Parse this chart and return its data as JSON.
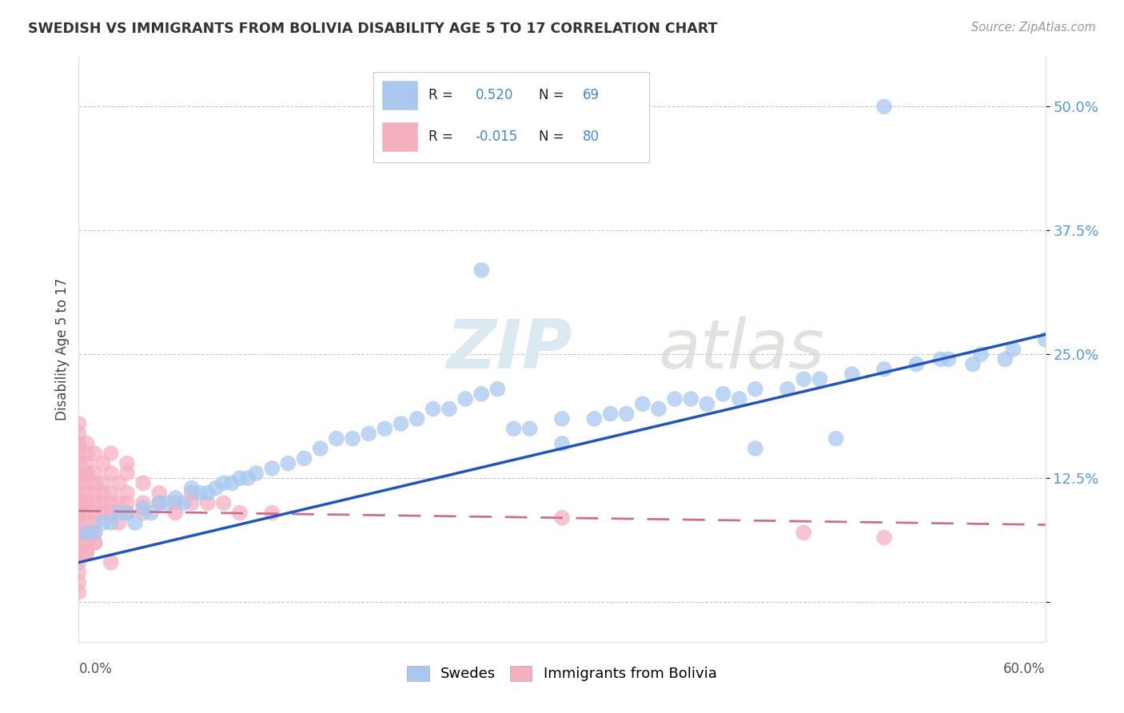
{
  "title": "SWEDISH VS IMMIGRANTS FROM BOLIVIA DISABILITY AGE 5 TO 17 CORRELATION CHART",
  "source": "Source: ZipAtlas.com",
  "ylabel": "Disability Age 5 to 17",
  "legend_swedes": "Swedes",
  "legend_bolivia": "Immigrants from Bolivia",
  "r_swedes": 0.52,
  "n_swedes": 69,
  "r_bolivia": -0.015,
  "n_bolivia": 80,
  "color_swedes": "#a8c8f0",
  "color_bolivia": "#f5b0c0",
  "color_line_swedes": "#2255bb",
  "color_line_bolivia": "#cc7090",
  "xlim": [
    0.0,
    0.6
  ],
  "ylim": [
    -0.04,
    0.55
  ],
  "yticks": [
    0.0,
    0.125,
    0.25,
    0.375,
    0.5
  ],
  "ytick_labels": [
    "",
    "12.5%",
    "25.0%",
    "37.5%",
    "50.0%"
  ],
  "sw_trendline": [
    0.0,
    0.04,
    0.6,
    0.27
  ],
  "bo_trendline": [
    0.0,
    0.092,
    0.6,
    0.078
  ],
  "swedes_x": [
    0.005,
    0.01,
    0.015,
    0.02,
    0.025,
    0.03,
    0.035,
    0.04,
    0.045,
    0.05,
    0.055,
    0.06,
    0.065,
    0.07,
    0.075,
    0.08,
    0.085,
    0.09,
    0.095,
    0.1,
    0.105,
    0.11,
    0.12,
    0.13,
    0.14,
    0.15,
    0.16,
    0.17,
    0.18,
    0.19,
    0.2,
    0.21,
    0.22,
    0.23,
    0.24,
    0.25,
    0.26,
    0.27,
    0.28,
    0.3,
    0.32,
    0.33,
    0.34,
    0.35,
    0.36,
    0.37,
    0.38,
    0.39,
    0.4,
    0.41,
    0.42,
    0.44,
    0.45,
    0.46,
    0.48,
    0.5,
    0.52,
    0.54,
    0.56,
    0.58,
    0.6,
    0.25,
    0.3,
    0.42,
    0.47,
    0.5,
    0.535,
    0.555,
    0.575
  ],
  "swedes_y": [
    0.07,
    0.07,
    0.08,
    0.08,
    0.09,
    0.09,
    0.08,
    0.095,
    0.09,
    0.1,
    0.1,
    0.105,
    0.1,
    0.115,
    0.11,
    0.11,
    0.115,
    0.12,
    0.12,
    0.125,
    0.125,
    0.13,
    0.135,
    0.14,
    0.145,
    0.155,
    0.165,
    0.165,
    0.17,
    0.175,
    0.18,
    0.185,
    0.195,
    0.195,
    0.205,
    0.21,
    0.215,
    0.175,
    0.175,
    0.185,
    0.185,
    0.19,
    0.19,
    0.2,
    0.195,
    0.205,
    0.205,
    0.2,
    0.21,
    0.205,
    0.215,
    0.215,
    0.225,
    0.225,
    0.23,
    0.235,
    0.24,
    0.245,
    0.25,
    0.255,
    0.265,
    0.335,
    0.16,
    0.155,
    0.165,
    0.5,
    0.245,
    0.24,
    0.245
  ],
  "bolivia_x": [
    0.0,
    0.0,
    0.0,
    0.0,
    0.0,
    0.0,
    0.0,
    0.0,
    0.0,
    0.0,
    0.005,
    0.005,
    0.005,
    0.005,
    0.005,
    0.005,
    0.005,
    0.005,
    0.005,
    0.005,
    0.01,
    0.01,
    0.01,
    0.01,
    0.01,
    0.01,
    0.01,
    0.015,
    0.015,
    0.015,
    0.02,
    0.02,
    0.02,
    0.025,
    0.025,
    0.03,
    0.03,
    0.03,
    0.04,
    0.04,
    0.05,
    0.05,
    0.06,
    0.06,
    0.07,
    0.07,
    0.08,
    0.09,
    0.1,
    0.12,
    0.0,
    0.0,
    0.005,
    0.005,
    0.01,
    0.015,
    0.02,
    0.025,
    0.03,
    0.04,
    0.0,
    0.0,
    0.0,
    0.005,
    0.005,
    0.01,
    0.015,
    0.02,
    0.03,
    0.3,
    0.45,
    0.5,
    0.0,
    0.005,
    0.0,
    0.01,
    0.02,
    0.0,
    0.0,
    0.005
  ],
  "bolivia_y": [
    0.09,
    0.1,
    0.08,
    0.07,
    0.11,
    0.06,
    0.12,
    0.05,
    0.13,
    0.09,
    0.1,
    0.09,
    0.11,
    0.08,
    0.07,
    0.12,
    0.06,
    0.13,
    0.05,
    0.1,
    0.09,
    0.1,
    0.08,
    0.11,
    0.07,
    0.12,
    0.06,
    0.1,
    0.09,
    0.11,
    0.1,
    0.09,
    0.11,
    0.1,
    0.08,
    0.1,
    0.09,
    0.11,
    0.1,
    0.09,
    0.1,
    0.11,
    0.1,
    0.09,
    0.1,
    0.11,
    0.1,
    0.1,
    0.09,
    0.09,
    0.14,
    0.15,
    0.13,
    0.14,
    0.13,
    0.12,
    0.13,
    0.12,
    0.13,
    0.12,
    0.16,
    0.17,
    0.18,
    0.15,
    0.16,
    0.15,
    0.14,
    0.15,
    0.14,
    0.085,
    0.07,
    0.065,
    0.04,
    0.05,
    0.03,
    0.06,
    0.04,
    0.02,
    0.01,
    0.07
  ]
}
